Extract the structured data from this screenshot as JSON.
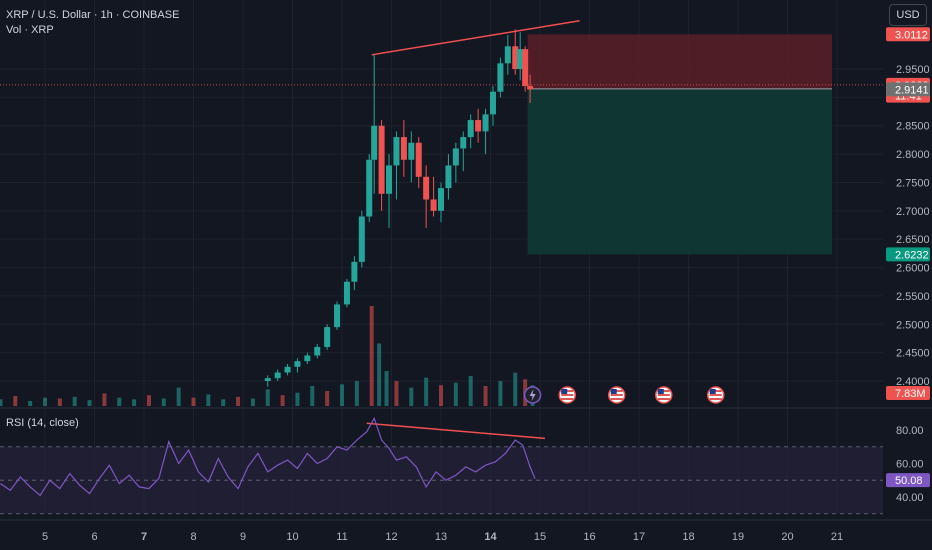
{
  "header": {
    "symbol_line": "XRP / U.S. Dollar · 1h · COINBASE",
    "volume_line": "Vol · XRP",
    "currency_button": "USD"
  },
  "colors": {
    "background": "#131722",
    "up": "#26a69a",
    "down": "#ef5350",
    "trendline": "#f05050",
    "rsi_line": "#7e57c2",
    "rsi_band": "#2a2340",
    "stop_zone": "#5a1f27",
    "target_zone": "#0f3a35",
    "axis_text": "#b2b5be"
  },
  "icons": [
    "lightning-event-icon",
    "us-flag-icon",
    "us-flag-icon",
    "us-flag-icon",
    "us-flag-icon"
  ],
  "chart_data": [
    {
      "type": "candlestick",
      "title": "XRP / U.S. Dollar · 1h · COINBASE",
      "xlabel": "",
      "ylabel": "",
      "x_ticks": [
        "5",
        "6",
        "7",
        "8",
        "9",
        "10",
        "11",
        "12",
        "13",
        "14",
        "15",
        "16",
        "17",
        "18",
        "19",
        "20",
        "21"
      ],
      "y_ticks": [
        "2.4000",
        "2.4500",
        "2.5000",
        "2.5500",
        "2.6000",
        "2.6500",
        "2.7000",
        "2.7500",
        "2.8000",
        "2.8500",
        "2.9000",
        "2.9500"
      ],
      "ylim": [
        2.385,
        3.02
      ],
      "price_labels": [
        {
          "label": "3.0112",
          "value": 3.0112,
          "color": "#ef5350"
        },
        {
          "label": "2.9220",
          "value": 2.922,
          "color": "#ef5350"
        },
        {
          "label": "11:41",
          "value": 2.903,
          "color": "#ef5350"
        },
        {
          "label": "2.9141",
          "value": 2.9141,
          "color": "#707070"
        },
        {
          "label": "2.6232",
          "value": 2.6232,
          "color": "#089981"
        }
      ],
      "volume_label": "7.83M",
      "trade_setup": {
        "entry": 2.915,
        "stop": 3.0112,
        "target": 2.6232,
        "start_day": 14.75,
        "end_day": 20.9
      },
      "trendline": {
        "from": {
          "day": 11.6,
          "price": 2.975
        },
        "to": {
          "day": 15.8,
          "price": 3.035
        }
      },
      "series": [
        {
          "name": "",
          "values": [
            {
              "day": 9.5,
              "open": 2.4,
              "high": 2.41,
              "low": 2.39,
              "close": 2.405
            },
            {
              "day": 9.7,
              "open": 2.405,
              "high": 2.42,
              "low": 2.4,
              "close": 2.415
            },
            {
              "day": 9.9,
              "open": 2.415,
              "high": 2.43,
              "low": 2.41,
              "close": 2.425
            },
            {
              "day": 10.1,
              "open": 2.425,
              "high": 2.44,
              "low": 2.415,
              "close": 2.435
            },
            {
              "day": 10.3,
              "open": 2.435,
              "high": 2.45,
              "low": 2.43,
              "close": 2.445
            },
            {
              "day": 10.5,
              "open": 2.445,
              "high": 2.465,
              "low": 2.44,
              "close": 2.46
            },
            {
              "day": 10.7,
              "open": 2.46,
              "high": 2.5,
              "low": 2.455,
              "close": 2.495
            },
            {
              "day": 10.9,
              "open": 2.495,
              "high": 2.54,
              "low": 2.49,
              "close": 2.535
            },
            {
              "day": 11.1,
              "open": 2.535,
              "high": 2.58,
              "low": 2.53,
              "close": 2.575
            },
            {
              "day": 11.25,
              "open": 2.575,
              "high": 2.62,
              "low": 2.56,
              "close": 2.61
            },
            {
              "day": 11.4,
              "open": 2.61,
              "high": 2.7,
              "low": 2.6,
              "close": 2.69
            },
            {
              "day": 11.55,
              "open": 2.69,
              "high": 2.8,
              "low": 2.68,
              "close": 2.79
            },
            {
              "day": 11.65,
              "open": 2.79,
              "high": 2.975,
              "low": 2.73,
              "close": 2.85
            },
            {
              "day": 11.8,
              "open": 2.85,
              "high": 2.86,
              "low": 2.7,
              "close": 2.73
            },
            {
              "day": 11.95,
              "open": 2.73,
              "high": 2.8,
              "low": 2.67,
              "close": 2.78
            },
            {
              "day": 12.1,
              "open": 2.78,
              "high": 2.84,
              "low": 2.72,
              "close": 2.83
            },
            {
              "day": 12.25,
              "open": 2.83,
              "high": 2.86,
              "low": 2.76,
              "close": 2.79
            },
            {
              "day": 12.4,
              "open": 2.79,
              "high": 2.84,
              "low": 2.75,
              "close": 2.82
            },
            {
              "day": 12.55,
              "open": 2.82,
              "high": 2.83,
              "low": 2.74,
              "close": 2.76
            },
            {
              "day": 12.7,
              "open": 2.76,
              "high": 2.78,
              "low": 2.67,
              "close": 2.72
            },
            {
              "day": 12.85,
              "open": 2.72,
              "high": 2.76,
              "low": 2.69,
              "close": 2.7
            },
            {
              "day": 13.0,
              "open": 2.7,
              "high": 2.75,
              "low": 2.68,
              "close": 2.74
            },
            {
              "day": 13.15,
              "open": 2.74,
              "high": 2.8,
              "low": 2.72,
              "close": 2.78
            },
            {
              "day": 13.3,
              "open": 2.78,
              "high": 2.82,
              "low": 2.75,
              "close": 2.81
            },
            {
              "day": 13.45,
              "open": 2.81,
              "high": 2.84,
              "low": 2.77,
              "close": 2.83
            },
            {
              "day": 13.6,
              "open": 2.83,
              "high": 2.87,
              "low": 2.81,
              "close": 2.86
            },
            {
              "day": 13.75,
              "open": 2.86,
              "high": 2.88,
              "low": 2.82,
              "close": 2.84
            },
            {
              "day": 13.9,
              "open": 2.84,
              "high": 2.88,
              "low": 2.8,
              "close": 2.87
            },
            {
              "day": 14.05,
              "open": 2.87,
              "high": 2.92,
              "low": 2.85,
              "close": 2.91
            },
            {
              "day": 14.2,
              "open": 2.91,
              "high": 2.97,
              "low": 2.9,
              "close": 2.96
            },
            {
              "day": 14.35,
              "open": 2.96,
              "high": 3.01,
              "low": 2.94,
              "close": 2.99
            },
            {
              "day": 14.5,
              "open": 2.99,
              "high": 3.02,
              "low": 2.94,
              "close": 2.95
            },
            {
              "day": 14.6,
              "open": 2.95,
              "high": 3.015,
              "low": 2.93,
              "close": 2.985
            },
            {
              "day": 14.7,
              "open": 2.985,
              "high": 2.99,
              "low": 2.91,
              "close": 2.92
            },
            {
              "day": 14.8,
              "open": 2.92,
              "high": 2.94,
              "low": 2.89,
              "close": 2.914
            }
          ]
        }
      ]
    },
    {
      "type": "line",
      "title": "RSI (14, close)",
      "xlabel": "",
      "ylabel": "",
      "y_ticks": [
        "40.00",
        "60.00",
        "80.00"
      ],
      "ylim": [
        26,
        92
      ],
      "bands": {
        "upper": 70,
        "middle": 50,
        "lower": 30
      },
      "current_label": "50.08",
      "trendline": {
        "from": {
          "day": 11.5,
          "value": 84
        },
        "to": {
          "day": 15.1,
          "value": 75
        }
      },
      "series": [
        {
          "name": "",
          "x": [
            4.1,
            4.3,
            4.5,
            4.7,
            4.9,
            5.1,
            5.3,
            5.5,
            5.7,
            5.9,
            6.1,
            6.3,
            6.5,
            6.7,
            6.9,
            7.1,
            7.3,
            7.5,
            7.7,
            7.9,
            8.1,
            8.3,
            8.5,
            8.7,
            8.9,
            9.1,
            9.3,
            9.5,
            9.7,
            9.9,
            10.1,
            10.3,
            10.5,
            10.7,
            10.9,
            11.1,
            11.3,
            11.5,
            11.65,
            11.8,
            11.95,
            12.1,
            12.3,
            12.5,
            12.7,
            12.9,
            13.1,
            13.3,
            13.5,
            13.7,
            13.9,
            14.1,
            14.3,
            14.5,
            14.65,
            14.8,
            14.9
          ],
          "values": [
            48,
            44,
            52,
            46,
            41,
            50,
            45,
            54,
            47,
            42,
            51,
            59,
            48,
            53,
            46,
            45,
            51,
            73,
            60,
            68,
            55,
            49,
            63,
            52,
            45,
            58,
            66,
            55,
            59,
            62,
            57,
            66,
            60,
            63,
            70,
            68,
            74,
            79,
            87,
            74,
            69,
            62,
            64,
            58,
            46,
            55,
            50,
            53,
            58,
            55,
            59,
            61,
            66,
            74,
            71,
            58,
            51
          ]
        }
      ]
    },
    {
      "type": "bar",
      "title": "Vol · XRP",
      "xlabel": "",
      "ylabel": "",
      "series": [
        {
          "name": "",
          "x": [
            4.1,
            4.4,
            4.7,
            5.0,
            5.3,
            5.6,
            5.9,
            6.2,
            6.5,
            6.8,
            7.1,
            7.4,
            7.7,
            8.0,
            8.3,
            8.6,
            8.9,
            9.2,
            9.5,
            9.8,
            10.1,
            10.4,
            10.7,
            11.0,
            11.3,
            11.6,
            11.75,
            11.9,
            12.1,
            12.4,
            12.7,
            13.0,
            13.3,
            13.6,
            13.9,
            14.2,
            14.5,
            14.7,
            14.85
          ],
          "values": [
            0.8,
            1.2,
            0.6,
            1.0,
            0.9,
            1.1,
            0.7,
            1.5,
            1.0,
            0.8,
            1.3,
            0.9,
            2.2,
            1.0,
            1.4,
            0.8,
            1.1,
            0.9,
            2.0,
            1.3,
            1.6,
            2.4,
            1.8,
            2.6,
            3.0,
            12.0,
            7.5,
            4.2,
            3.0,
            2.2,
            3.4,
            2.5,
            2.8,
            3.6,
            2.4,
            3.0,
            4.0,
            3.2,
            2.5
          ]
        }
      ]
    }
  ]
}
